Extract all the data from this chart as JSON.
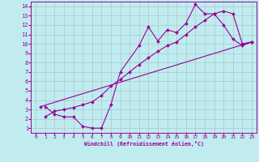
{
  "xlabel": "Windchill (Refroidissement éolien,°C)",
  "bg_color": "#c0ecf0",
  "grid_color": "#a8c8cc",
  "line_color": "#990099",
  "xlim": [
    -0.5,
    23.5
  ],
  "ylim": [
    0.5,
    14.5
  ],
  "xticks": [
    0,
    1,
    2,
    3,
    4,
    5,
    6,
    7,
    8,
    9,
    10,
    11,
    12,
    13,
    14,
    15,
    16,
    17,
    18,
    19,
    20,
    21,
    22,
    23
  ],
  "yticks": [
    1,
    2,
    3,
    4,
    5,
    6,
    7,
    8,
    9,
    10,
    11,
    12,
    13,
    14
  ],
  "line1_x": [
    1,
    2,
    3,
    4,
    5,
    6,
    7,
    8,
    9,
    11,
    12,
    13,
    14,
    15,
    16,
    17,
    18,
    19,
    20,
    21,
    22,
    23
  ],
  "line1_y": [
    3.3,
    2.5,
    2.2,
    2.2,
    1.2,
    1.0,
    1.0,
    3.5,
    7.0,
    9.8,
    11.8,
    10.3,
    11.5,
    11.2,
    12.2,
    14.2,
    13.2,
    13.2,
    12.0,
    10.5,
    9.8,
    10.2
  ],
  "line2_x": [
    1,
    2,
    3,
    4,
    5,
    6,
    7,
    8,
    9,
    10,
    11,
    12,
    13,
    14,
    15,
    16,
    17,
    18,
    19,
    20,
    21,
    22,
    23
  ],
  "line2_y": [
    2.2,
    2.8,
    3.0,
    3.2,
    3.5,
    3.8,
    4.5,
    5.5,
    6.2,
    7.0,
    7.8,
    8.5,
    9.2,
    9.8,
    10.2,
    11.0,
    11.8,
    12.5,
    13.2,
    13.5,
    13.2,
    10.0,
    10.2
  ],
  "line3_x": [
    0.5,
    23
  ],
  "line3_y": [
    3.3,
    10.2
  ]
}
